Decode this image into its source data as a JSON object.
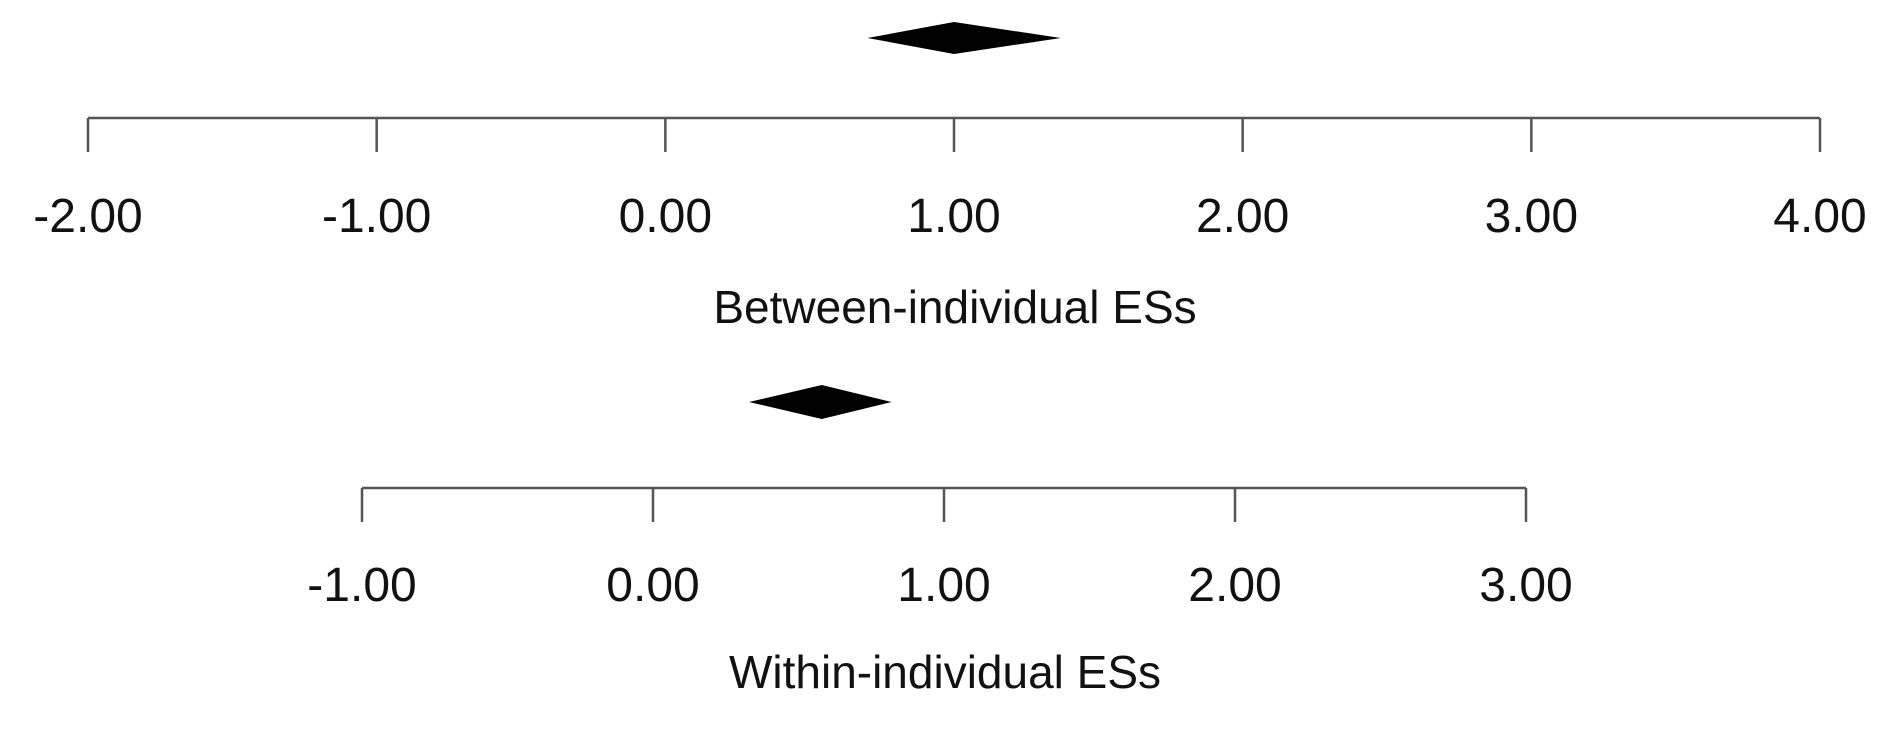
{
  "chart_data": [
    {
      "type": "forest-summary",
      "xlabel": "Between-individual ESs",
      "xlim": [
        -2,
        4
      ],
      "ticks": [
        -2,
        -1,
        0,
        1,
        2,
        3,
        4
      ],
      "tick_labels": [
        "-2.00",
        "-1.00",
        "0.00",
        "1.00",
        "2.00",
        "3.00",
        "4.00"
      ],
      "summary": {
        "estimate": 1.0,
        "ci_lower": 0.7,
        "ci_upper": 1.37
      },
      "colors": {
        "diamond": "#000000",
        "axis": "#555555"
      }
    },
    {
      "type": "forest-summary",
      "xlabel": "Within-individual ESs",
      "xlim": [
        -1,
        3
      ],
      "ticks": [
        -1,
        0,
        1,
        2,
        3
      ],
      "tick_labels": [
        "-1.00",
        "0.00",
        "1.00",
        "2.00",
        "3.00"
      ],
      "summary": {
        "estimate": 0.58,
        "ci_lower": 0.33,
        "ci_upper": 0.82
      },
      "colors": {
        "diamond": "#000000",
        "axis": "#555555"
      }
    }
  ]
}
